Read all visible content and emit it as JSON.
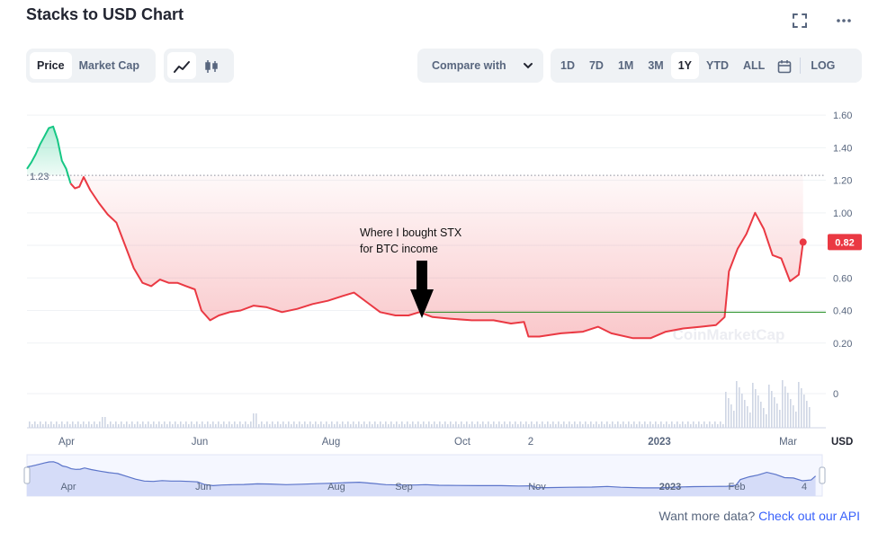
{
  "header": {
    "title": "Stacks to USD Chart",
    "expand_icon": "expand-icon",
    "more_icon": "more-icon"
  },
  "view_tabs": [
    {
      "label": "Price",
      "active": true
    },
    {
      "label": "Market Cap",
      "active": false
    }
  ],
  "chart_type_icons": [
    {
      "name": "line-chart-icon",
      "active": true
    },
    {
      "name": "candlestick-icon",
      "active": false
    }
  ],
  "compare": {
    "label": "Compare with",
    "icon": "chevron-down-icon"
  },
  "ranges": [
    {
      "label": "1D",
      "active": false
    },
    {
      "label": "7D",
      "active": false
    },
    {
      "label": "1M",
      "active": false
    },
    {
      "label": "3M",
      "active": false
    },
    {
      "label": "1Y",
      "active": true
    },
    {
      "label": "YTD",
      "active": false
    },
    {
      "label": "ALL",
      "active": false
    }
  ],
  "calendar_icon": "calendar-icon",
  "log_label": "LOG",
  "annotation": {
    "lines": [
      "Where I bought STX",
      "for BTC income"
    ]
  },
  "watermark": "CoinMarketCap",
  "footer": {
    "text": "Want more data?",
    "link": "Check out our API"
  },
  "colors": {
    "up": "#16c784",
    "down": "#ea3943",
    "grid": "#eff2f5",
    "axis_text": "#58667e",
    "buy_line": "#1a8a1a",
    "nav_fill": "#d5dcf8",
    "nav_line": "#5b74c9"
  },
  "chart_data": {
    "type": "area",
    "currency": "USD",
    "y_ticks": [
      1.6,
      1.4,
      1.2,
      1.0,
      0.8,
      0.6,
      0.4,
      0.2
    ],
    "volume_tick": "0",
    "ylim": [
      0.0,
      1.7
    ],
    "reference_price": 1.23,
    "current_price": 0.82,
    "buy_price": 0.39,
    "x_ticks": [
      "Apr",
      "Jun",
      "Aug",
      "Oct",
      "2",
      "2023",
      "Mar"
    ],
    "navigator_ticks": [
      "Apr",
      "Jun",
      "Aug",
      "Sep",
      "Nov",
      "2023",
      "Feb",
      "4"
    ],
    "x_range": [
      "2022-03-25",
      "2023-03-19"
    ],
    "series": [
      {
        "points": [
          [
            "2022-03-25",
            1.27
          ],
          [
            "2022-03-27",
            1.31
          ],
          [
            "2022-03-29",
            1.36
          ],
          [
            "2022-03-31",
            1.42
          ],
          [
            "2022-04-02",
            1.47
          ],
          [
            "2022-04-04",
            1.52
          ],
          [
            "2022-04-06",
            1.53
          ],
          [
            "2022-04-08",
            1.45
          ],
          [
            "2022-04-10",
            1.32
          ],
          [
            "2022-04-12",
            1.27
          ],
          [
            "2022-04-14",
            1.18
          ],
          [
            "2022-04-16",
            1.15
          ],
          [
            "2022-04-18",
            1.16
          ],
          [
            "2022-04-20",
            1.22
          ],
          [
            "2022-04-23",
            1.14
          ],
          [
            "2022-04-27",
            1.06
          ],
          [
            "2022-05-01",
            0.99
          ],
          [
            "2022-05-05",
            0.94
          ],
          [
            "2022-05-09",
            0.8
          ],
          [
            "2022-05-13",
            0.66
          ],
          [
            "2022-05-17",
            0.57
          ],
          [
            "2022-05-21",
            0.55
          ],
          [
            "2022-05-25",
            0.59
          ],
          [
            "2022-05-29",
            0.57
          ],
          [
            "2022-06-02",
            0.57
          ],
          [
            "2022-06-06",
            0.55
          ],
          [
            "2022-06-10",
            0.53
          ],
          [
            "2022-06-13",
            0.4
          ],
          [
            "2022-06-17",
            0.34
          ],
          [
            "2022-06-21",
            0.37
          ],
          [
            "2022-06-26",
            0.39
          ],
          [
            "2022-07-01",
            0.4
          ],
          [
            "2022-07-07",
            0.43
          ],
          [
            "2022-07-13",
            0.42
          ],
          [
            "2022-07-20",
            0.39
          ],
          [
            "2022-07-27",
            0.41
          ],
          [
            "2022-08-03",
            0.44
          ],
          [
            "2022-08-10",
            0.46
          ],
          [
            "2022-08-17",
            0.49
          ],
          [
            "2022-08-22",
            0.51
          ],
          [
            "2022-08-28",
            0.45
          ],
          [
            "2022-09-03",
            0.39
          ],
          [
            "2022-09-10",
            0.37
          ],
          [
            "2022-09-16",
            0.37
          ],
          [
            "2022-09-21",
            0.39
          ],
          [
            "2022-09-27",
            0.36
          ],
          [
            "2022-10-05",
            0.35
          ],
          [
            "2022-10-15",
            0.34
          ],
          [
            "2022-10-25",
            0.34
          ],
          [
            "2022-11-02",
            0.32
          ],
          [
            "2022-11-08",
            0.33
          ],
          [
            "2022-11-10",
            0.24
          ],
          [
            "2022-11-15",
            0.24
          ],
          [
            "2022-11-25",
            0.26
          ],
          [
            "2022-12-05",
            0.27
          ],
          [
            "2022-12-12",
            0.3
          ],
          [
            "2022-12-18",
            0.26
          ],
          [
            "2022-12-28",
            0.23
          ],
          [
            "2023-01-05",
            0.23
          ],
          [
            "2023-01-12",
            0.27
          ],
          [
            "2023-01-20",
            0.29
          ],
          [
            "2023-01-28",
            0.3
          ],
          [
            "2023-02-04",
            0.31
          ],
          [
            "2023-02-08",
            0.36
          ],
          [
            "2023-02-10",
            0.64
          ],
          [
            "2023-02-14",
            0.78
          ],
          [
            "2023-02-18",
            0.87
          ],
          [
            "2023-02-22",
            1.0
          ],
          [
            "2023-02-26",
            0.9
          ],
          [
            "2023-03-02",
            0.74
          ],
          [
            "2023-03-06",
            0.72
          ],
          [
            "2023-03-10",
            0.58
          ],
          [
            "2023-03-14",
            0.62
          ],
          [
            "2023-03-16",
            0.82
          ]
        ]
      }
    ]
  }
}
